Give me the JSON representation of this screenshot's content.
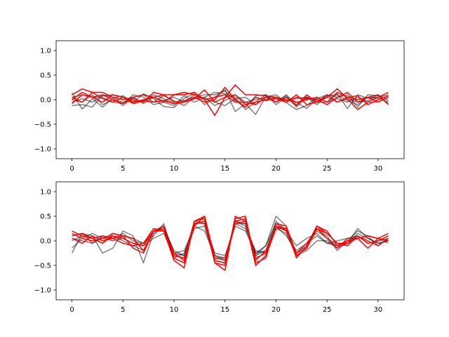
{
  "figure": {
    "background": "#ffffff"
  },
  "chart_data": [
    {
      "type": "line",
      "title": "",
      "xlabel": "",
      "ylabel": "",
      "xlim": [
        -1.55,
        32.55
      ],
      "ylim": [
        -1.2,
        1.2
      ],
      "xticks": [
        0,
        5,
        10,
        15,
        20,
        25,
        30
      ],
      "yticks": [
        -1.0,
        -0.5,
        0.0,
        0.5,
        1.0
      ],
      "grid": false,
      "legend": "none",
      "series": [
        {
          "color": "#000000",
          "alpha": 0.5,
          "values": [
            0.14,
            -0.19,
            0.02,
            -0.15,
            0.03,
            0.08,
            -0.05,
            0.12,
            0.02,
            -0.14,
            -0.16,
            0.03,
            0.12,
            -0.1,
            0.05,
            0.2,
            -0.24,
            -0.08,
            -0.3,
            0.06,
            0.1,
            -0.06,
            -0.2,
            -0.12,
            0.05,
            -0.05,
            0.12,
            -0.18,
            0.1,
            0.03,
            0.05,
            0.1
          ]
        },
        {
          "color": "#000000",
          "alpha": 0.5,
          "values": [
            -0.12,
            -0.1,
            -0.15,
            0.1,
            0.05,
            -0.12,
            0.05,
            0.1,
            -0.05,
            0.08,
            -0.02,
            -0.12,
            0.05,
            0.1,
            0.1,
            0.18,
            -0.02,
            -0.15,
            0.08,
            0.1,
            -0.05,
            0.08,
            -0.15,
            0.05,
            -0.1,
            0.08,
            0.1,
            -0.02,
            -0.1,
            0.05,
            0.03,
            -0.05
          ]
        },
        {
          "color": "#000000",
          "alpha": 0.5,
          "values": [
            0.05,
            0.1,
            0.05,
            0.05,
            -0.05,
            -0.08,
            0.1,
            0.05,
            -0.1,
            -0.05,
            -0.12,
            0.08,
            -0.05,
            0.05,
            0.15,
            0.12,
            0.05,
            -0.2,
            -0.05,
            0.1,
            -0.1,
            0.05,
            -0.05,
            -0.18,
            0.02,
            0.1,
            0.05,
            0.1,
            -0.15,
            0.1,
            0.08,
            -0.08
          ]
        },
        {
          "color": "#000000",
          "alpha": 0.5,
          "values": [
            -0.05,
            0.02,
            -0.05,
            0.08,
            0.1,
            0.05,
            -0.02,
            -0.05,
            0.1,
            0.02,
            -0.08,
            -0.05,
            0.1,
            0.02,
            -0.05,
            -0.12,
            0.02,
            0.05,
            -0.1,
            0.05,
            0.05,
            -0.02,
            0.02,
            0.05,
            -0.05,
            -0.05,
            0.02,
            -0.05,
            0.05,
            -0.05,
            -0.05,
            0.05
          ]
        },
        {
          "color": "#000000",
          "alpha": 0.5,
          "values": [
            0.0,
            -0.05,
            0.1,
            -0.1,
            0.0,
            -0.05,
            0.05,
            -0.08,
            0.05,
            -0.02,
            0.05,
            -0.05,
            0.02,
            0.05,
            -0.12,
            -0.02,
            0.1,
            -0.05,
            0.0,
            0.05,
            -0.05,
            0.1,
            -0.1,
            0.05,
            0.0,
            0.05,
            -0.05,
            0.02,
            -0.05,
            -0.02,
            0.1,
            -0.02
          ]
        },
        {
          "color": "#ff0000",
          "alpha": 1,
          "values": [
            0.1,
            0.22,
            0.15,
            0.15,
            0.05,
            0.0,
            0.05,
            0.1,
            0.05,
            -0.05,
            0.1,
            0.1,
            0.15,
            0.0,
            -0.32,
            0.05,
            0.3,
            0.1,
            0.1,
            0.08,
            0.05,
            -0.05,
            0.1,
            -0.1,
            -0.05,
            0.05,
            0.22,
            0.02,
            -0.2,
            -0.05,
            0.05,
            0.15
          ]
        },
        {
          "color": "#ff0000",
          "alpha": 1,
          "values": [
            -0.08,
            0.1,
            0.05,
            0.1,
            0.0,
            -0.08,
            0.02,
            -0.05,
            0.15,
            0.1,
            0.1,
            0.15,
            0.1,
            0.0,
            0.05,
            0.1,
            -0.05,
            -0.05,
            -0.1,
            0.05,
            -0.05,
            0.05,
            -0.12,
            0.1,
            -0.05,
            0.1,
            -0.05,
            0.05,
            0.08,
            -0.1,
            0.0,
            0.08
          ]
        },
        {
          "color": "#ff0000",
          "alpha": 1,
          "values": [
            0.05,
            -0.05,
            0.15,
            0.02,
            -0.05,
            0.05,
            -0.08,
            -0.02,
            -0.05,
            -0.02,
            -0.08,
            -0.05,
            0.02,
            0.2,
            -0.05,
            0.05,
            0.1,
            -0.1,
            -0.05,
            0.0,
            0.02,
            -0.05,
            0.05,
            0.02,
            0.0,
            -0.1,
            0.05,
            0.15,
            -0.05,
            0.05,
            0.1,
            -0.1
          ]
        },
        {
          "color": "#ff0000",
          "alpha": 1,
          "values": [
            0.0,
            0.15,
            0.05,
            -0.05,
            0.1,
            0.05,
            -0.05,
            0.0,
            0.05,
            0.1,
            -0.05,
            -0.02,
            0.05,
            -0.05,
            0.0,
            0.25,
            0.0,
            -0.15,
            0.05,
            -0.02,
            0.05,
            0.0,
            -0.05,
            0.0,
            0.05,
            -0.05,
            0.15,
            0.05,
            0.0,
            0.05,
            -0.05,
            0.05
          ]
        }
      ]
    },
    {
      "type": "line",
      "title": "",
      "xlabel": "",
      "ylabel": "",
      "xlim": [
        -1.55,
        32.55
      ],
      "ylim": [
        -1.2,
        1.2
      ],
      "xticks": [
        0,
        5,
        10,
        15,
        20,
        25,
        30
      ],
      "yticks": [
        -1.0,
        -0.5,
        0.0,
        0.5,
        1.0
      ],
      "grid": false,
      "legend": "none",
      "series": [
        {
          "color": "#000000",
          "alpha": 0.5,
          "values": [
            -0.25,
            0.15,
            0.1,
            -0.25,
            -0.15,
            0.2,
            0.1,
            -0.45,
            0.15,
            0.3,
            -0.25,
            -0.2,
            0.3,
            0.2,
            -0.3,
            -0.35,
            0.35,
            0.35,
            -0.25,
            -0.1,
            0.5,
            0.3,
            -0.25,
            -0.15,
            0.25,
            0.1,
            -0.2,
            0.0,
            0.2,
            0.1,
            0.05,
            -0.05
          ]
        },
        {
          "color": "#000000",
          "alpha": 0.5,
          "values": [
            0.1,
            0.15,
            -0.05,
            0.05,
            0.15,
            0.1,
            0.05,
            -0.05,
            0.2,
            0.25,
            -0.2,
            -0.3,
            0.35,
            0.4,
            -0.3,
            -0.4,
            0.4,
            0.3,
            -0.3,
            -0.1,
            0.35,
            0.2,
            -0.1,
            0.05,
            0.15,
            -0.05,
            0.0,
            0.05,
            0.1,
            -0.05,
            0.0,
            0.05
          ]
        },
        {
          "color": "#000000",
          "alpha": 0.5,
          "values": [
            -0.15,
            0.05,
            0.15,
            0.05,
            0.0,
            0.05,
            -0.05,
            -0.1,
            0.05,
            0.15,
            -0.3,
            -0.35,
            0.4,
            0.35,
            -0.25,
            -0.3,
            0.3,
            0.2,
            -0.25,
            -0.2,
            0.25,
            0.15,
            -0.3,
            -0.2,
            0.0,
            0.0,
            -0.15,
            -0.05,
            0.25,
            0.05,
            -0.05,
            0.0
          ]
        },
        {
          "color": "#000000",
          "alpha": 0.5,
          "values": [
            0.05,
            0.0,
            -0.05,
            0.1,
            0.05,
            0.15,
            0.0,
            -0.05,
            0.1,
            0.35,
            -0.35,
            -0.25,
            0.25,
            0.3,
            -0.4,
            -0.45,
            0.35,
            0.25,
            -0.2,
            -0.25,
            0.3,
            0.1,
            -0.2,
            -0.05,
            0.1,
            -0.05,
            -0.1,
            -0.05,
            0.05,
            0.1,
            -0.1,
            0.05
          ]
        },
        {
          "color": "#000000",
          "alpha": 0.5,
          "values": [
            0.0,
            0.1,
            0.05,
            -0.05,
            0.1,
            0.0,
            -0.1,
            -0.2,
            0.2,
            0.3,
            -0.25,
            -0.3,
            0.35,
            0.35,
            -0.35,
            -0.4,
            0.4,
            0.35,
            -0.3,
            -0.2,
            0.4,
            0.2,
            -0.25,
            -0.1,
            0.2,
            0.05,
            -0.1,
            -0.05,
            0.15,
            0.05,
            -0.05,
            0.0
          ]
        },
        {
          "color": "#ff0000",
          "alpha": 1,
          "values": [
            0.2,
            0.1,
            0.05,
            -0.05,
            0.15,
            0.1,
            -0.15,
            -0.25,
            0.2,
            0.2,
            -0.4,
            -0.55,
            0.4,
            0.5,
            -0.45,
            -0.6,
            0.5,
            0.4,
            -0.5,
            -0.3,
            0.25,
            0.25,
            -0.35,
            -0.1,
            0.3,
            0.15,
            -0.05,
            -0.05,
            0.1,
            -0.05,
            0.0,
            0.1
          ]
        },
        {
          "color": "#ff0000",
          "alpha": 1,
          "values": [
            0.1,
            0.15,
            0.05,
            0.1,
            0.05,
            0.1,
            0.05,
            -0.2,
            0.2,
            0.25,
            -0.3,
            -0.35,
            0.4,
            0.45,
            -0.4,
            -0.45,
            0.45,
            0.5,
            -0.45,
            -0.35,
            0.35,
            0.3,
            -0.3,
            -0.15,
            0.3,
            0.2,
            -0.1,
            0.0,
            0.05,
            0.1,
            0.05,
            0.15
          ]
        },
        {
          "color": "#ff0000",
          "alpha": 1,
          "values": [
            0.05,
            -0.05,
            0.1,
            0.0,
            0.05,
            -0.05,
            -0.1,
            -0.05,
            0.25,
            0.2,
            -0.25,
            -0.4,
            0.3,
            0.5,
            -0.35,
            -0.35,
            0.35,
            0.4,
            -0.35,
            -0.25,
            0.3,
            0.2,
            -0.25,
            -0.05,
            0.25,
            0.05,
            -0.15,
            0.05,
            0.05,
            -0.15,
            0.05,
            0.0
          ]
        },
        {
          "color": "#ff0000",
          "alpha": 1,
          "values": [
            0.15,
            0.05,
            0.0,
            0.05,
            0.1,
            0.05,
            -0.05,
            -0.1,
            0.2,
            0.3,
            -0.35,
            -0.45,
            0.35,
            0.4,
            -0.45,
            -0.5,
            0.4,
            0.45,
            -0.4,
            -0.2,
            0.3,
            0.25,
            -0.3,
            -0.15,
            0.25,
            0.15,
            -0.05,
            -0.1,
            0.1,
            0.0,
            -0.1,
            0.05
          ]
        }
      ]
    }
  ]
}
